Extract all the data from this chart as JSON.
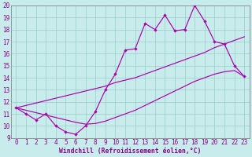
{
  "x": [
    0,
    1,
    2,
    3,
    4,
    5,
    6,
    7,
    8,
    9,
    10,
    11,
    12,
    13,
    14,
    15,
    16,
    17,
    18,
    19,
    20,
    21,
    22,
    23
  ],
  "y_main": [
    11.5,
    11.0,
    10.5,
    11.0,
    10.0,
    9.5,
    9.3,
    10.0,
    11.2,
    13.0,
    14.3,
    16.3,
    16.4,
    18.5,
    18.0,
    19.2,
    17.9,
    18.0,
    20.0,
    18.7,
    17.0,
    16.8,
    15.0,
    14.1
  ],
  "y_upper": [
    11.5,
    11.7,
    11.9,
    12.1,
    12.3,
    12.5,
    12.7,
    12.9,
    13.1,
    13.3,
    13.6,
    13.8,
    14.0,
    14.3,
    14.6,
    14.9,
    15.2,
    15.5,
    15.8,
    16.1,
    16.5,
    16.8,
    17.1,
    17.4
  ],
  "y_lower": [
    11.5,
    11.3,
    11.1,
    10.9,
    10.7,
    10.5,
    10.3,
    10.15,
    10.2,
    10.4,
    10.7,
    11.0,
    11.3,
    11.7,
    12.1,
    12.5,
    12.9,
    13.3,
    13.7,
    14.0,
    14.3,
    14.5,
    14.6,
    14.1
  ],
  "xlabel": "Windchill (Refroidissement éolien,°C)",
  "xlim": [
    0,
    23
  ],
  "ylim": [
    9,
    20
  ],
  "yticks": [
    9,
    10,
    11,
    12,
    13,
    14,
    15,
    16,
    17,
    18,
    19,
    20
  ],
  "xticks": [
    0,
    1,
    2,
    3,
    4,
    5,
    6,
    7,
    8,
    9,
    10,
    11,
    12,
    13,
    14,
    15,
    16,
    17,
    18,
    19,
    20,
    21,
    22,
    23
  ],
  "line_color": "#aa00aa",
  "bg_color": "#c8ecec",
  "grid_color": "#99cccc",
  "font_color": "#880088",
  "tick_fontsize": 5.5,
  "label_fontsize": 5.8
}
